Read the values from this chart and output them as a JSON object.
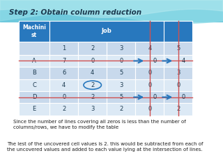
{
  "title": "Step 2: Obtain column reduction",
  "col_headers": [
    "",
    "1",
    "2",
    "3",
    "4",
    "5"
  ],
  "rows": [
    [
      "A",
      "7",
      "0",
      "0",
      "0",
      "4"
    ],
    [
      "B",
      "6",
      "4",
      "5",
      "0",
      "3"
    ],
    [
      "C",
      "4",
      "2",
      "3",
      "0",
      "0"
    ],
    [
      "D",
      "0",
      "2",
      "5",
      "0",
      "0"
    ],
    [
      "E",
      "2",
      "3",
      "2",
      "0",
      "2"
    ]
  ],
  "note1": "Since the number of lines covering all zeros is less than the number of\ncolumns/rows, we have to modify the table",
  "note2": "The lest of the uncovered cell values is 2. this would be subtracted from each of\nthe uncovered values and added to each value lying at the intersection of lines.",
  "table_header_bg": "#2878BE",
  "table_header_text": "#FFFFFF",
  "row_bg_light": "#DCE9F5",
  "row_bg_dark": "#C8D9EC",
  "border_color": "#FFFFFF",
  "title_color": "#1C3A50",
  "note_color": "#1C1C1C",
  "line_color": "#D05050",
  "arrow_color": "#2878BE",
  "circle_color": "#2878BE",
  "horizontal_lines": [
    0,
    3
  ],
  "vertical_lines": [
    4,
    5
  ],
  "arrows": [
    {
      "row": 0,
      "col": 4
    },
    {
      "row": 0,
      "col": 5
    },
    {
      "row": 3,
      "col": 4
    },
    {
      "row": 3,
      "col": 5
    }
  ],
  "circled": {
    "row": 2,
    "col": 2
  },
  "bg_top_color": "#80D0DC",
  "bg_bottom_color": "#FFFFFF",
  "wave_color": "#FFFFFF"
}
